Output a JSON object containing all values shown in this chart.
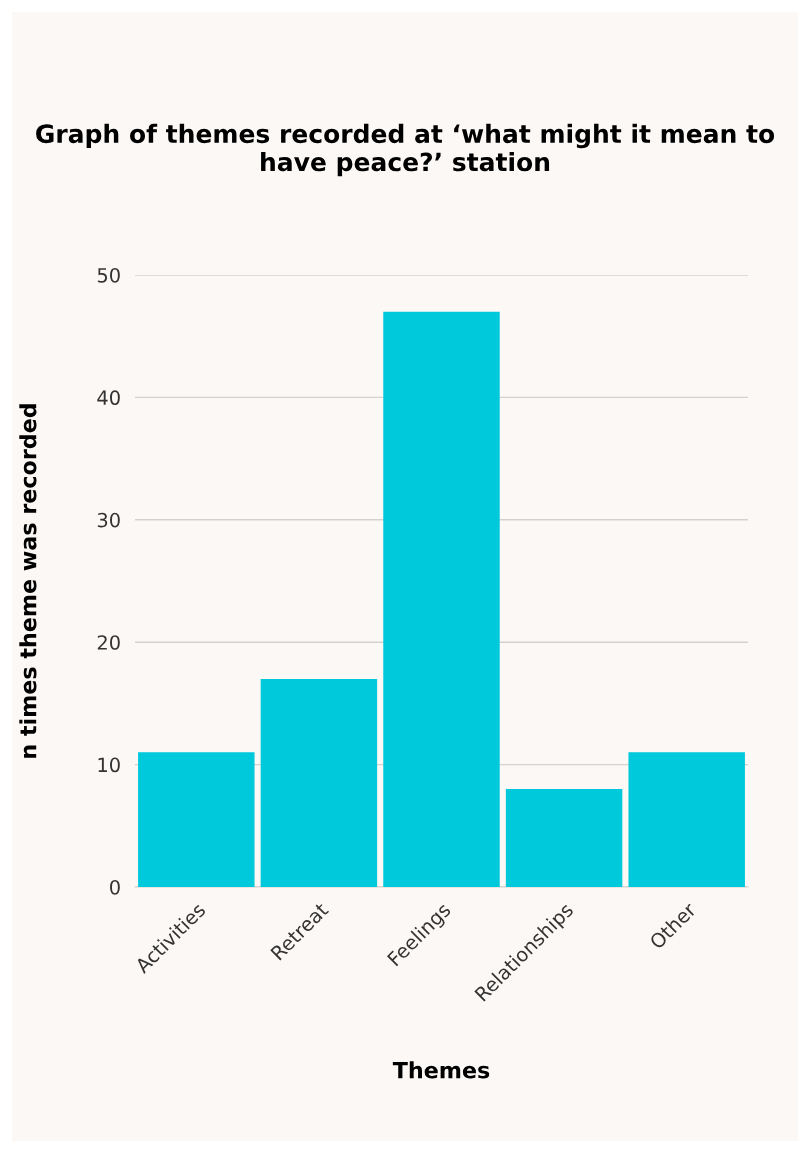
{
  "chart_data": {
    "type": "bar",
    "title": "Graph of themes recorded at ‘what might it mean to have peace?’ station",
    "xlabel": "Themes",
    "ylabel": "n times theme was recorded",
    "categories": [
      "Activities",
      "Retreat",
      "Feelings",
      "Relationships",
      "Other"
    ],
    "values": [
      11,
      17,
      47,
      8,
      11
    ],
    "color": "#00c9dc",
    "ylim": [
      0,
      50
    ],
    "yticks": [
      0,
      10,
      20,
      30,
      40,
      50
    ],
    "grid": "y"
  }
}
